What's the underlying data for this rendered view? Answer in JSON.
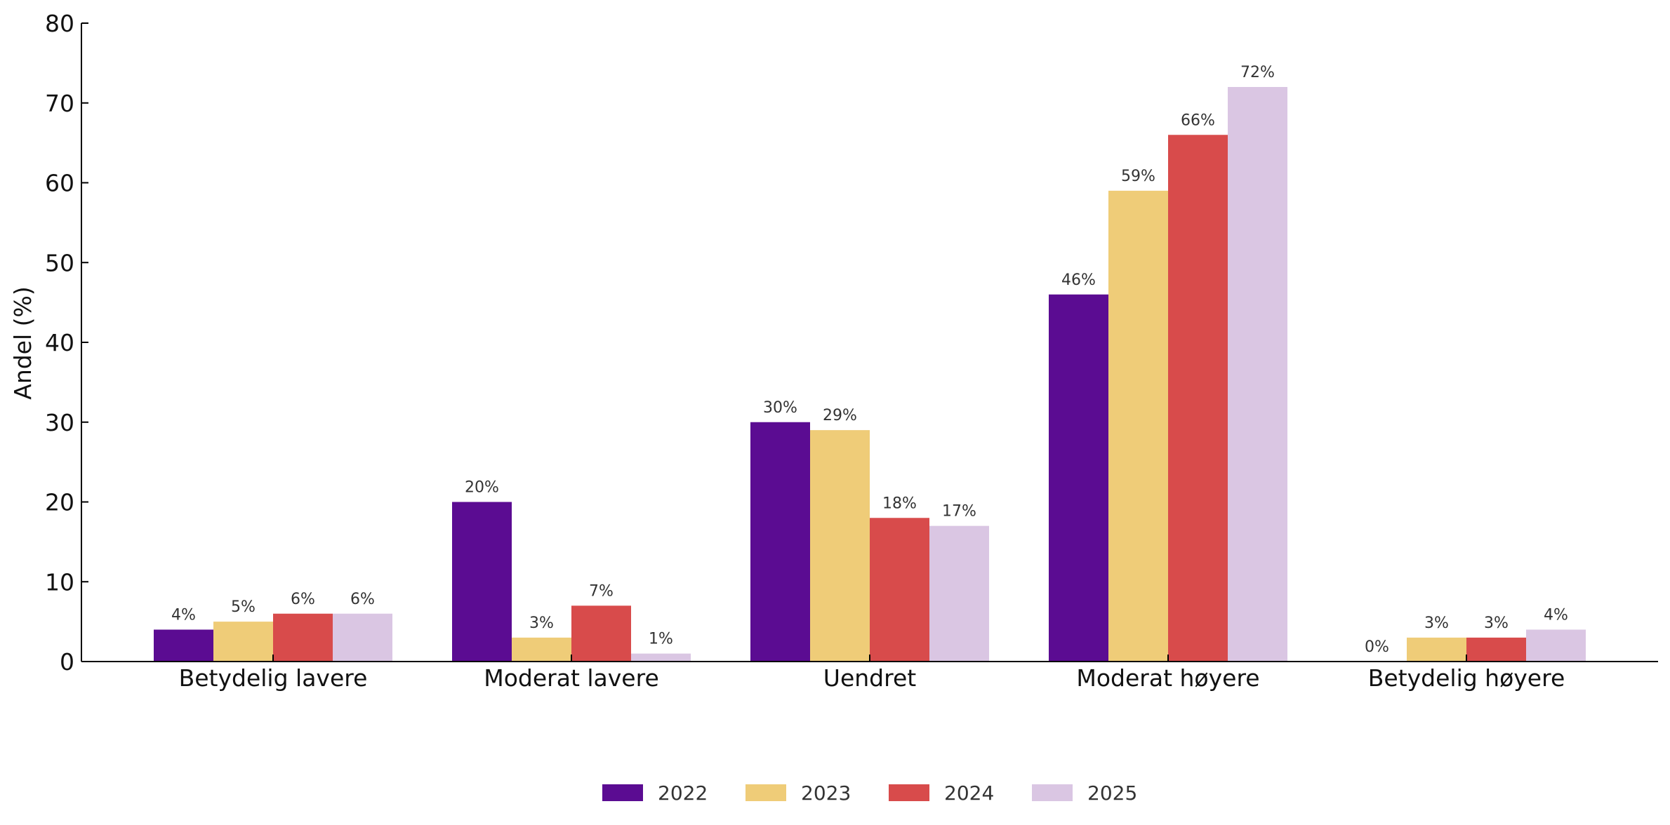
{
  "chart_data": {
    "type": "bar",
    "categories": [
      "Betydelig lavere",
      "Moderat lavere",
      "Uendret",
      "Moderat høyere",
      "Betydelig høyere"
    ],
    "series": [
      {
        "name": "2022",
        "color": "#5b0c92",
        "values": [
          4,
          20,
          30,
          46,
          0
        ],
        "labels": [
          "4%",
          "20%",
          "30%",
          "46%",
          "0%"
        ]
      },
      {
        "name": "2023",
        "color": "#efcc78",
        "values": [
          5,
          3,
          29,
          59,
          3
        ],
        "labels": [
          "5%",
          "3%",
          "29%",
          "59%",
          "3%"
        ]
      },
      {
        "name": "2024",
        "color": "#d84b4b",
        "values": [
          6,
          7,
          18,
          66,
          3
        ],
        "labels": [
          "6%",
          "7%",
          "18%",
          "66%",
          "3%"
        ]
      },
      {
        "name": "2025",
        "color": "#dac6e3",
        "values": [
          6,
          1,
          17,
          72,
          4
        ],
        "labels": [
          "6%",
          "1%",
          "17%",
          "72%",
          "4%"
        ]
      }
    ],
    "ylabel": "Andel (%)",
    "ylim": [
      0,
      80
    ],
    "yticks": [
      "0",
      "10",
      "20",
      "30",
      "40",
      "50",
      "60",
      "70",
      "80"
    ],
    "grid": false,
    "legend_position": "bottom-center"
  }
}
